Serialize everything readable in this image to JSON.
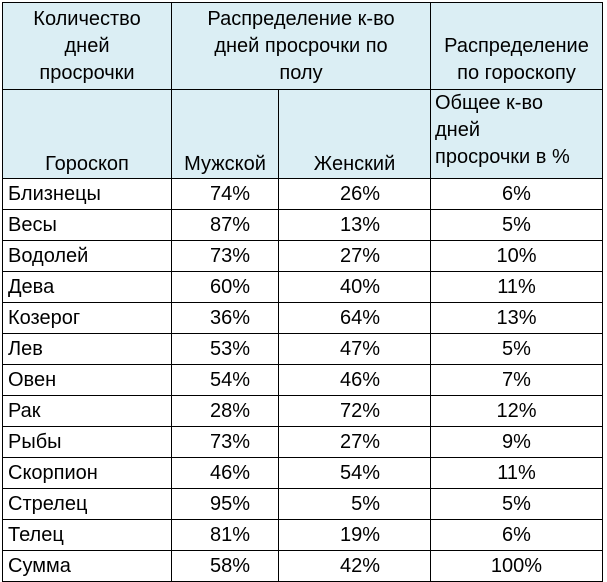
{
  "header": {
    "col1_top": [
      "Количество",
      "дней",
      "просрочки"
    ],
    "col23_top": [
      "Распределение к-во",
      "дней просрочки по",
      "полу"
    ],
    "col4_top": [
      "Распределение",
      "по гороскопу"
    ],
    "col1_sub": "Гороскоп",
    "col2_sub": "Мужской",
    "col3_sub": "Женский",
    "col4_sub": [
      "Общее к-во",
      "дней",
      "просрочки в %"
    ]
  },
  "rows": [
    {
      "sign": "Близнецы",
      "male": "74%",
      "female": "26%",
      "total": "6%"
    },
    {
      "sign": "Весы",
      "male": "87%",
      "female": "13%",
      "total": "5%"
    },
    {
      "sign": "Водолей",
      "male": "73%",
      "female": "27%",
      "total": "10%"
    },
    {
      "sign": "Дева",
      "male": "60%",
      "female": "40%",
      "total": "11%"
    },
    {
      "sign": "Козерог",
      "male": "36%",
      "female": "64%",
      "total": "13%"
    },
    {
      "sign": "Лев",
      "male": "53%",
      "female": "47%",
      "total": "5%"
    },
    {
      "sign": "Овен",
      "male": "54%",
      "female": "46%",
      "total": "7%"
    },
    {
      "sign": "Рак",
      "male": "28%",
      "female": "72%",
      "total": "12%"
    },
    {
      "sign": "Рыбы",
      "male": "73%",
      "female": "27%",
      "total": "9%"
    },
    {
      "sign": "Скорпион",
      "male": "46%",
      "female": "54%",
      "total": "11%"
    },
    {
      "sign": "Стрелец",
      "male": "95%",
      "female": "5%",
      "total": "5%"
    },
    {
      "sign": "Телец",
      "male": "81%",
      "female": "19%",
      "total": "6%"
    },
    {
      "sign": "Сумма",
      "male": "58%",
      "female": "42%",
      "total": "100%"
    }
  ],
  "colors": {
    "header_bg": "#dbeef4",
    "border": "#000000"
  }
}
